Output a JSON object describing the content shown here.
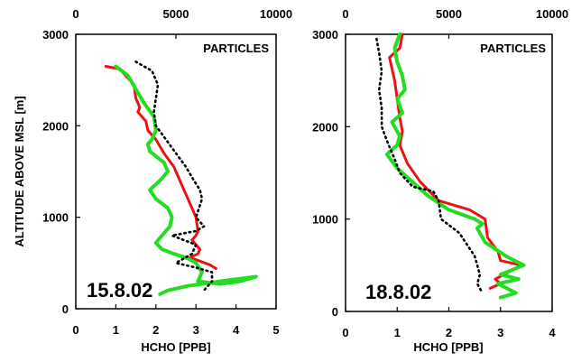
{
  "chart_data": [
    {
      "type": "line",
      "annotation": "PARTICLES",
      "date_label": "15.8.02",
      "xlabel": "HCHO [PPB]",
      "ylabel": "ALTITUDE ABOVE MSL [m]",
      "xlim": [
        0,
        5
      ],
      "xticks": [
        "0",
        "1",
        "2",
        "3",
        "4",
        "5"
      ],
      "x2lim": [
        0,
        10000
      ],
      "x2ticks": [
        "0",
        "5000",
        "10000"
      ],
      "ylim": [
        0,
        3000
      ],
      "yticks": [
        "0",
        "1000",
        "2000",
        "3000"
      ],
      "series": [
        {
          "key": "red",
          "axis": "bottom",
          "color": "#ee1111",
          "style": "solid",
          "x": [
            0.75,
            1.1,
            1.45,
            1.5,
            1.6,
            1.55,
            1.75,
            1.8,
            2.0,
            2.2,
            2.45,
            2.6,
            2.75,
            2.9,
            3.0,
            3.05,
            3.0,
            2.9,
            3.1,
            3.05,
            2.85,
            3.1,
            3.35,
            3.5
          ],
          "y": [
            2650,
            2620,
            2450,
            2300,
            2200,
            2150,
            2050,
            1950,
            1850,
            1700,
            1550,
            1400,
            1250,
            1100,
            1000,
            850,
            800,
            750,
            650,
            600,
            560,
            520,
            480,
            440
          ]
        },
        {
          "key": "green",
          "axis": "bottom",
          "color": "#22dd22",
          "style": "solid",
          "x": [
            1.0,
            1.3,
            1.5,
            1.7,
            1.95,
            2.0,
            1.9,
            1.8,
            1.85,
            2.05,
            2.2,
            2.3,
            2.1,
            1.85,
            2.0,
            2.3,
            2.4,
            2.35,
            2.15,
            2.0,
            2.15,
            2.45,
            2.8,
            3.0,
            3.15,
            3.05,
            3.6,
            4.1,
            4.5,
            3.6,
            2.8,
            2.3,
            2.1
          ],
          "y": [
            2650,
            2550,
            2400,
            2250,
            2100,
            1950,
            1850,
            1800,
            1720,
            1650,
            1600,
            1500,
            1400,
            1300,
            1200,
            1100,
            1000,
            900,
            800,
            720,
            650,
            600,
            550,
            500,
            400,
            300,
            270,
            300,
            350,
            300,
            250,
            200,
            160
          ]
        },
        {
          "key": "black",
          "axis": "bottom",
          "color": "#000000",
          "style": "dotted",
          "x": [
            1.5,
            1.9,
            2.05,
            2.0,
            1.95,
            2.0,
            2.25,
            2.5,
            2.75,
            2.95,
            3.1,
            3.15,
            3.0,
            3.2,
            3.0,
            2.4,
            2.7,
            3.0,
            2.9,
            2.5,
            3.0,
            3.4,
            3.4,
            3.2
          ],
          "y": [
            2700,
            2600,
            2450,
            2300,
            2150,
            2000,
            1850,
            1700,
            1550,
            1400,
            1300,
            1200,
            1000,
            900,
            850,
            800,
            750,
            700,
            600,
            500,
            450,
            400,
            300,
            200
          ]
        }
      ]
    },
    {
      "type": "line",
      "annotation": "PARTICLES",
      "date_label": "18.8.02",
      "xlabel": "HCHO [PPB]",
      "ylabel": "",
      "xlim": [
        0,
        4
      ],
      "xticks": [
        "0",
        "1",
        "2",
        "3",
        "4"
      ],
      "x2lim": [
        0,
        10000
      ],
      "x2ticks": [
        "0",
        "5000",
        "10000"
      ],
      "ylim": [
        0,
        3000
      ],
      "yticks": [
        "0",
        "1000",
        "2000",
        "3000"
      ],
      "series": [
        {
          "key": "red",
          "axis": "bottom",
          "color": "#ee1111",
          "style": "solid",
          "x": [
            1.1,
            1.05,
            0.85,
            0.95,
            1.0,
            1.05,
            1.1,
            1.05,
            1.2,
            1.45,
            1.8,
            2.4,
            2.7,
            2.75,
            2.95,
            3.0,
            3.4,
            2.9,
            3.0,
            2.8
          ],
          "y": [
            3000,
            2850,
            2750,
            2500,
            2300,
            2100,
            1950,
            1800,
            1600,
            1400,
            1200,
            1100,
            1000,
            800,
            650,
            550,
            500,
            350,
            300,
            250
          ]
        },
        {
          "key": "green",
          "axis": "bottom",
          "color": "#22dd22",
          "style": "solid",
          "x": [
            1.05,
            0.95,
            1.0,
            1.1,
            1.15,
            1.0,
            1.1,
            0.9,
            1.05,
            1.0,
            0.8,
            1.0,
            1.3,
            1.6,
            2.0,
            2.5,
            2.65,
            2.55,
            2.7,
            3.1,
            3.45,
            3.0,
            3.35,
            2.95,
            3.3,
            3.0
          ],
          "y": [
            3000,
            2850,
            2700,
            2550,
            2400,
            2300,
            2150,
            2050,
            1900,
            1800,
            1700,
            1550,
            1400,
            1250,
            1100,
            1000,
            950,
            900,
            750,
            600,
            500,
            400,
            350,
            300,
            200,
            150
          ]
        },
        {
          "key": "black",
          "axis": "bottom",
          "color": "#000000",
          "style": "dotted",
          "x": [
            0.6,
            0.65,
            0.7,
            0.65,
            0.7,
            0.7,
            0.8,
            0.95,
            1.05,
            1.3,
            1.7,
            1.8,
            1.85,
            2.2,
            2.5,
            2.6,
            2.55,
            2.65
          ],
          "y": [
            2950,
            2800,
            2600,
            2400,
            2200,
            2000,
            1850,
            1650,
            1500,
            1350,
            1300,
            1200,
            1000,
            850,
            600,
            400,
            300,
            200
          ]
        }
      ]
    }
  ]
}
